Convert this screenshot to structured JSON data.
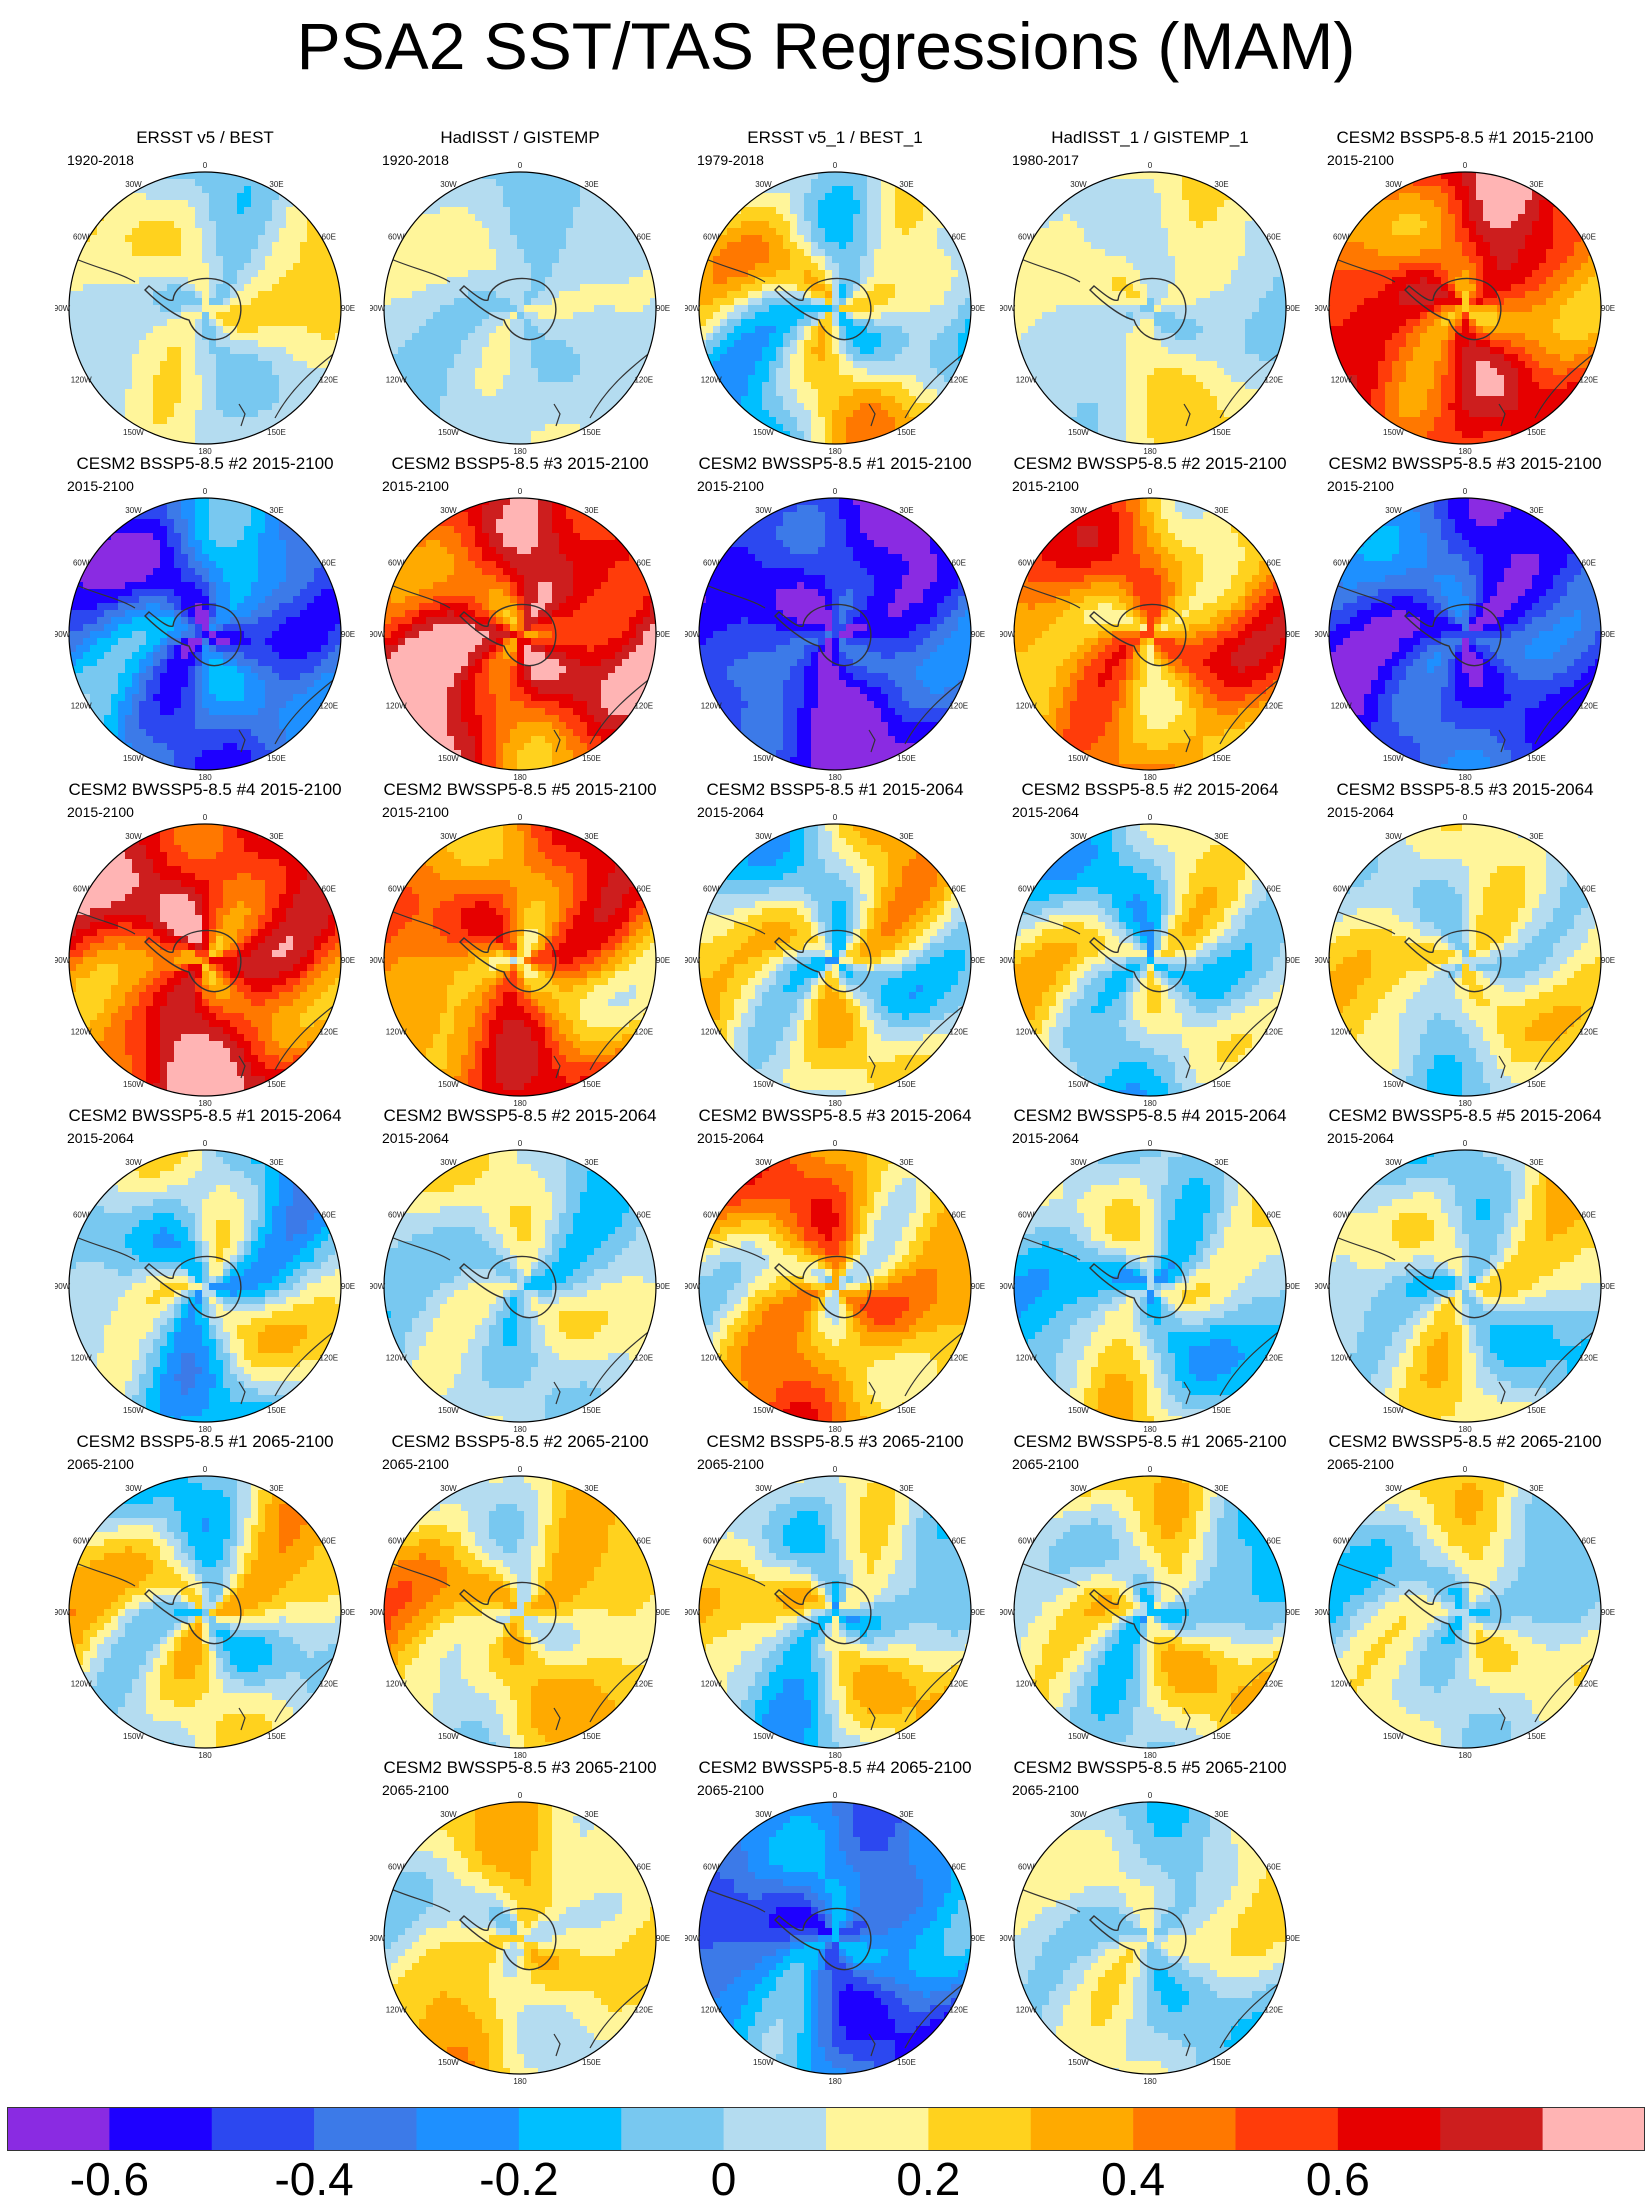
{
  "title": "PSA2 SST/TAS Regressions (MAM)",
  "colors": {
    "palette": [
      "#8a2be2",
      "#1e00ff",
      "#2c48f0",
      "#3c7ae8",
      "#1e90ff",
      "#00bfff",
      "#78c8f0",
      "#b4dcf0",
      "#fff59a",
      "#ffd21e",
      "#ffaa00",
      "#ff7800",
      "#ff3c0a",
      "#e60000",
      "#cd1e1e",
      "#ffb4b4"
    ],
    "coast": "#333333",
    "land": "#d8e9f2"
  },
  "colorbar": {
    "tick_labels": [
      "-0.6",
      "-0.4",
      "-0.2",
      "0",
      "0.2",
      "0.4",
      "0.6"
    ]
  },
  "lon_labels": [
    "0",
    "30E",
    "60E",
    "90E",
    "120E",
    "150E",
    "180",
    "150W",
    "120W",
    "90W",
    "60W",
    "30W"
  ],
  "chart_data": {
    "type": "heatmap",
    "projection": "south-polar-stereographic",
    "variable": "PSA2 SST/TAS regression",
    "season": "MAM",
    "color_levels": [
      -0.7,
      -0.6,
      -0.5,
      -0.4,
      -0.3,
      -0.2,
      -0.1,
      0,
      0.1,
      0.2,
      0.3,
      0.4,
      0.5,
      0.6,
      0.7
    ],
    "panels": [
      {
        "title": "ERSST v5 / BEST",
        "period": "1920-2018",
        "level": 0.0,
        "wave": 0.12
      },
      {
        "title": "HadISST / GISTEMP",
        "period": "1920-2018",
        "level": -0.05,
        "wave": 0.07
      },
      {
        "title": "ERSST v5_1 / BEST_1",
        "period": "1979-2018",
        "level": 0.0,
        "wave": 0.22
      },
      {
        "title": "HadISST_1 / GISTEMP_1",
        "period": "1980-2017",
        "level": 0.0,
        "wave": 0.1
      },
      {
        "title": "CESM2 BSSP5-8.5 #1 2015-2100",
        "period": "2015-2100",
        "level": 0.45,
        "wave": 0.2
      },
      {
        "title": "CESM2 BSSP5-8.5 #2 2015-2100",
        "period": "2015-2100",
        "level": -0.45,
        "wave": 0.2
      },
      {
        "title": "CESM2 BSSP5-8.5 #3 2015-2100",
        "period": "2015-2100",
        "level": 0.55,
        "wave": 0.22
      },
      {
        "title": "CESM2 BWSSP5-8.5 #1 2015-2100",
        "period": "2015-2100",
        "level": -0.6,
        "wave": 0.15
      },
      {
        "title": "CESM2 BWSSP5-8.5 #2 2015-2100",
        "period": "2015-2100",
        "level": 0.3,
        "wave": 0.2
      },
      {
        "title": "CESM2 BWSSP5-8.5 #3 2015-2100",
        "period": "2015-2100",
        "level": -0.55,
        "wave": 0.15
      },
      {
        "title": "CESM2 BWSSP5-8.5 #4 2015-2100",
        "period": "2015-2100",
        "level": 0.5,
        "wave": 0.22
      },
      {
        "title": "CESM2 BWSSP5-8.5 #5 2015-2100",
        "period": "2015-2100",
        "level": 0.35,
        "wave": 0.2
      },
      {
        "title": "CESM2 BSSP5-8.5 #1 2015-2064",
        "period": "2015-2064",
        "level": 0.02,
        "wave": 0.2
      },
      {
        "title": "CESM2 BSSP5-8.5 #2 2015-2064",
        "period": "2015-2064",
        "level": -0.05,
        "wave": 0.18
      },
      {
        "title": "CESM2 BSSP5-8.5 #3 2015-2064",
        "period": "2015-2064",
        "level": 0.02,
        "wave": 0.14
      },
      {
        "title": "CESM2 BWSSP5-8.5 #1 2015-2064",
        "period": "2015-2064",
        "level": -0.1,
        "wave": 0.2
      },
      {
        "title": "CESM2 BWSSP5-8.5 #2 2015-2064",
        "period": "2015-2064",
        "level": -0.05,
        "wave": 0.12
      },
      {
        "title": "CESM2 BWSSP5-8.5 #3 2015-2064",
        "period": "2015-2064",
        "level": 0.22,
        "wave": 0.2
      },
      {
        "title": "CESM2 BWSSP5-8.5 #4 2015-2064",
        "period": "2015-2064",
        "level": -0.08,
        "wave": 0.18
      },
      {
        "title": "CESM2 BWSSP5-8.5 #5 2015-2064",
        "period": "2015-2064",
        "level": -0.02,
        "wave": 0.16
      },
      {
        "title": "CESM2 BSSP5-8.5 #1 2065-2100",
        "period": "2065-2100",
        "level": 0.02,
        "wave": 0.2
      },
      {
        "title": "CESM2 BSSP5-8.5 #2 2065-2100",
        "period": "2065-2100",
        "level": 0.12,
        "wave": 0.16
      },
      {
        "title": "CESM2 BSSP5-8.5 #3 2065-2100",
        "period": "2065-2100",
        "level": -0.02,
        "wave": 0.2
      },
      {
        "title": "CESM2 BWSSP5-8.5 #1 2065-2100",
        "period": "2065-2100",
        "level": 0.0,
        "wave": 0.18
      },
      {
        "title": "CESM2 BWSSP5-8.5 #2 2065-2100",
        "period": "2065-2100",
        "level": -0.03,
        "wave": 0.14
      },
      {
        "title": "CESM2 BWSSP5-8.5 #3 2065-2100",
        "period": "2065-2100",
        "level": 0.08,
        "wave": 0.14
      },
      {
        "title": "CESM2 BWSSP5-8.5 #4 2065-2100",
        "period": "2065-2100",
        "level": -0.4,
        "wave": 0.18
      },
      {
        "title": "CESM2 BWSSP5-8.5 #5 2065-2100",
        "period": "2065-2100",
        "level": -0.04,
        "wave": 0.12
      }
    ]
  }
}
